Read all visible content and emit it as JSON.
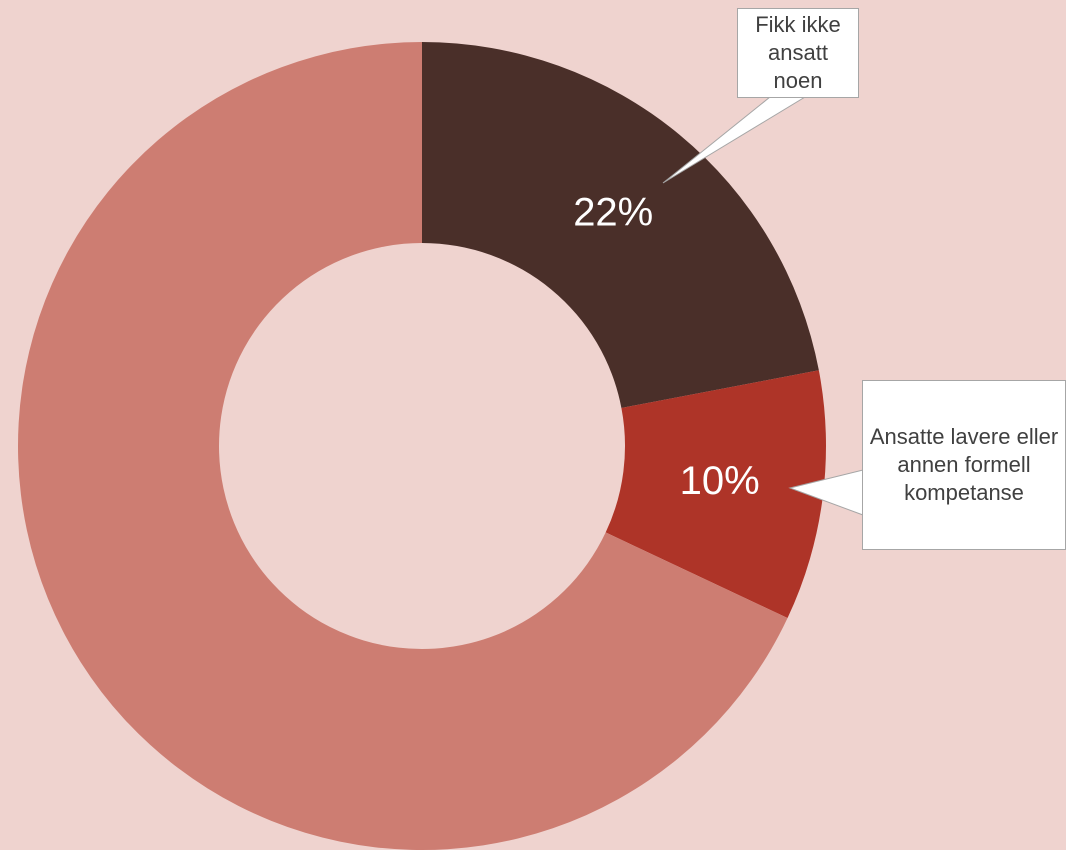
{
  "chart_data": {
    "type": "donut",
    "categories": [
      "Fikk ikke ansatt noen",
      "Ansatte lavere eller annen formell kompetanse",
      null
    ],
    "values": [
      22,
      10,
      68
    ],
    "value_labels": [
      "22%",
      "10%",
      null
    ],
    "colors": [
      "#4a2f29",
      "#ae3428",
      "#cd7d72"
    ]
  }
}
